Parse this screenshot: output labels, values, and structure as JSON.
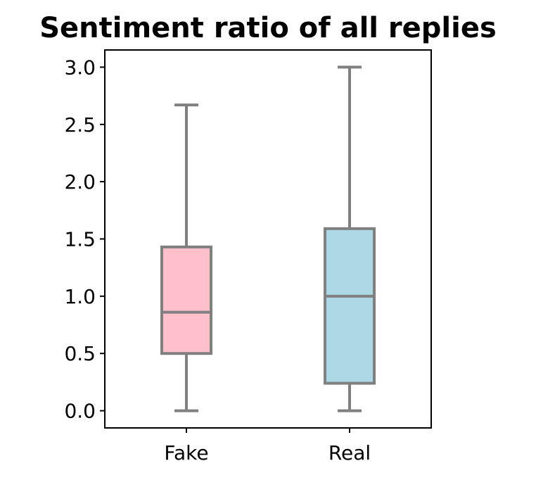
{
  "chart_data": {
    "type": "box",
    "title": "Sentiment ratio of all replies",
    "xlabel": "",
    "ylabel": "",
    "categories": [
      "Fake",
      "Real"
    ],
    "boxes": [
      {
        "name": "Fake",
        "whisker_low": 0.0,
        "q1": 0.5,
        "median": 0.86,
        "q3": 1.43,
        "whisker_high": 2.67,
        "fill": "#ffc0cb"
      },
      {
        "name": "Real",
        "whisker_low": 0.0,
        "q1": 0.24,
        "median": 1.0,
        "q3": 1.59,
        "whisker_high": 3.0,
        "fill": "#add8e6"
      }
    ],
    "ylim": [
      -0.15,
      3.15
    ],
    "yticks": [
      0.0,
      0.5,
      1.0,
      1.5,
      2.0,
      2.5,
      3.0
    ],
    "ytick_labels": [
      "0.0",
      "0.5",
      "1.0",
      "1.5",
      "2.0",
      "2.5",
      "3.0"
    ],
    "line_color": "#808080",
    "grid": false,
    "legend": "none"
  }
}
